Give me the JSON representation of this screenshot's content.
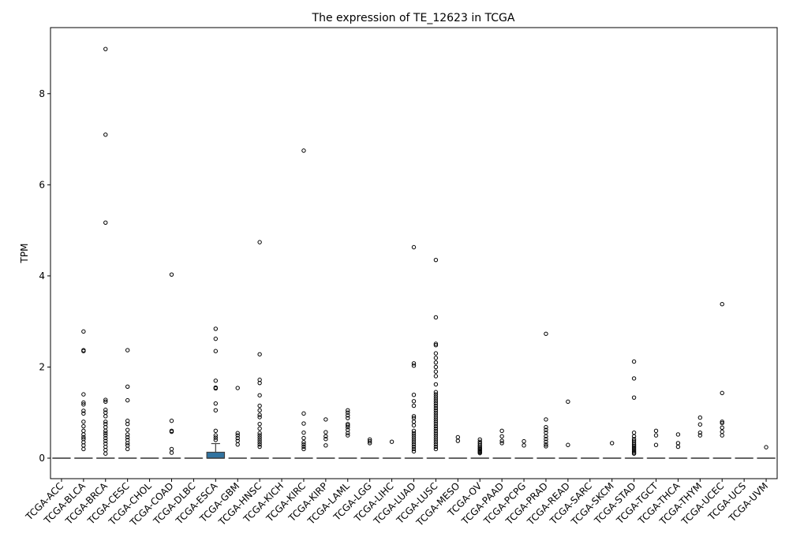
{
  "chart_data": {
    "type": "box",
    "title": "The expression of TE_12623 in TCGA",
    "xlabel": "",
    "ylabel": "TPM",
    "ylim": [
      -0.45,
      9.45
    ],
    "yticks": [
      0,
      2,
      4,
      6,
      8
    ],
    "box_color": "#3274a1",
    "categories": [
      "TCGA-ACC",
      "TCGA-BLCA",
      "TCGA-BRCA",
      "TCGA-CESC",
      "TCGA-CHOL",
      "TCGA-COAD",
      "TCGA-DLBC",
      "TCGA-ESCA",
      "TCGA-GBM",
      "TCGA-HNSC",
      "TCGA-KICH",
      "TCGA-KIRC",
      "TCGA-KIRP",
      "TCGA-LAML",
      "TCGA-LGG",
      "TCGA-LIHC",
      "TCGA-LUAD",
      "TCGA-LUSC",
      "TCGA-MESO",
      "TCGA-OV",
      "TCGA-PAAD",
      "TCGA-PCPG",
      "TCGA-PRAD",
      "TCGA-READ",
      "TCGA-SARC",
      "TCGA-SKCM",
      "TCGA-STAD",
      "TCGA-TGCT",
      "TCGA-THCA",
      "TCGA-THYM",
      "TCGA-UCEC",
      "TCGA-UCS",
      "TCGA-UVM"
    ],
    "boxes": [
      {
        "q1": 0,
        "median": 0,
        "q3": 0,
        "whisker_low": 0,
        "whisker_high": 0,
        "outliers": []
      },
      {
        "q1": 0,
        "median": 0,
        "q3": 0,
        "whisker_low": 0,
        "whisker_high": 0,
        "outliers": [
          2.78,
          2.37,
          2.35,
          1.4,
          1.22,
          1.18,
          1.04,
          0.98,
          0.8,
          0.7,
          0.6,
          0.52,
          0.46,
          0.42,
          0.35,
          0.28,
          0.2
        ]
      },
      {
        "q1": 0,
        "median": 0,
        "q3": 0,
        "whisker_low": 0,
        "whisker_high": 0,
        "outliers": [
          8.98,
          7.1,
          5.17,
          1.28,
          1.24,
          1.06,
          1.0,
          0.92,
          0.8,
          0.75,
          0.68,
          0.6,
          0.55,
          0.5,
          0.44,
          0.38,
          0.32,
          0.25,
          0.18,
          0.1
        ]
      },
      {
        "q1": 0,
        "median": 0,
        "q3": 0,
        "whisker_low": 0,
        "whisker_high": 0,
        "outliers": [
          2.37,
          1.57,
          1.27,
          0.82,
          0.75,
          0.62,
          0.52,
          0.46,
          0.4,
          0.33,
          0.28,
          0.2
        ]
      },
      {
        "q1": 0,
        "median": 0,
        "q3": 0,
        "whisker_low": 0,
        "whisker_high": 0,
        "outliers": []
      },
      {
        "q1": 0,
        "median": 0,
        "q3": 0,
        "whisker_low": 0,
        "whisker_high": 0,
        "outliers": [
          4.03,
          0.82,
          0.6,
          0.58,
          0.2,
          0.12
        ]
      },
      {
        "q1": 0,
        "median": 0,
        "q3": 0,
        "whisker_low": 0,
        "whisker_high": 0,
        "outliers": []
      },
      {
        "q1": 0,
        "median": 0,
        "q3": 0.13,
        "whisker_low": 0,
        "whisker_high": 0.32,
        "outliers": [
          2.84,
          2.62,
          2.35,
          1.7,
          1.55,
          1.53,
          1.2,
          1.05,
          0.6,
          0.5,
          0.45,
          0.4
        ]
      },
      {
        "q1": 0,
        "median": 0,
        "q3": 0,
        "whisker_low": 0,
        "whisker_high": 0,
        "outliers": [
          1.54,
          0.55,
          0.5,
          0.44,
          0.38,
          0.3
        ]
      },
      {
        "q1": 0,
        "median": 0,
        "q3": 0,
        "whisker_low": 0,
        "whisker_high": 0,
        "outliers": [
          4.74,
          2.28,
          1.72,
          1.65,
          1.38,
          1.15,
          1.05,
          0.95,
          0.9,
          0.75,
          0.65,
          0.55,
          0.5,
          0.45,
          0.4,
          0.35,
          0.3,
          0.25
        ]
      },
      {
        "q1": 0,
        "median": 0,
        "q3": 0,
        "whisker_low": 0,
        "whisker_high": 0,
        "outliers": []
      },
      {
        "q1": 0,
        "median": 0,
        "q3": 0,
        "whisker_low": 0,
        "whisker_high": 0,
        "outliers": [
          6.75,
          0.98,
          0.76,
          0.56,
          0.44,
          0.35,
          0.3,
          0.25,
          0.2
        ]
      },
      {
        "q1": 0,
        "median": 0,
        "q3": 0,
        "whisker_low": 0,
        "whisker_high": 0,
        "outliers": [
          0.85,
          0.57,
          0.48,
          0.42,
          0.28
        ]
      },
      {
        "q1": 0,
        "median": 0,
        "q3": 0,
        "whisker_low": 0,
        "whisker_high": 0,
        "outliers": [
          1.05,
          1.0,
          0.94,
          0.88,
          0.75,
          0.72,
          0.68,
          0.62,
          0.55,
          0.5
        ]
      },
      {
        "q1": 0,
        "median": 0,
        "q3": 0,
        "whisker_low": 0,
        "whisker_high": 0,
        "outliers": [
          0.41,
          0.37,
          0.33
        ]
      },
      {
        "q1": 0,
        "median": 0,
        "q3": 0,
        "whisker_low": 0,
        "whisker_high": 0,
        "outliers": [
          0.36
        ]
      },
      {
        "q1": 0,
        "median": 0,
        "q3": 0,
        "whisker_low": 0,
        "whisker_high": 0,
        "outliers": [
          4.63,
          2.08,
          2.03,
          1.39,
          1.25,
          1.15,
          0.92,
          0.88,
          0.8,
          0.72,
          0.6,
          0.55,
          0.5,
          0.45,
          0.4,
          0.35,
          0.3,
          0.25,
          0.2,
          0.15
        ]
      },
      {
        "q1": 0,
        "median": 0,
        "q3": 0,
        "whisker_low": 0,
        "whisker_high": 0,
        "outliers": [
          4.35,
          3.09,
          2.51,
          2.48,
          2.3,
          2.2,
          2.1,
          2.0,
          1.9,
          1.8,
          1.62,
          1.45,
          1.4,
          1.35,
          1.3,
          1.25,
          1.2,
          1.15,
          1.1,
          1.05,
          1.0,
          0.95,
          0.9,
          0.85,
          0.8,
          0.75,
          0.7,
          0.65,
          0.6,
          0.55,
          0.5,
          0.45,
          0.4,
          0.35,
          0.3,
          0.25,
          0.2
        ]
      },
      {
        "q1": 0,
        "median": 0,
        "q3": 0,
        "whisker_low": 0,
        "whisker_high": 0,
        "outliers": [
          0.46,
          0.38
        ]
      },
      {
        "q1": 0,
        "median": 0,
        "q3": 0,
        "whisker_low": 0,
        "whisker_high": 0,
        "outliers": [
          0.41,
          0.36,
          0.32,
          0.28,
          0.25,
          0.22,
          0.2,
          0.17,
          0.15,
          0.13,
          0.11
        ]
      },
      {
        "q1": 0,
        "median": 0,
        "q3": 0,
        "whisker_low": 0,
        "whisker_high": 0,
        "outliers": [
          0.6,
          0.48,
          0.38,
          0.33
        ]
      },
      {
        "q1": 0,
        "median": 0,
        "q3": 0,
        "whisker_low": 0,
        "whisker_high": 0,
        "outliers": [
          0.37,
          0.28
        ]
      },
      {
        "q1": 0,
        "median": 0,
        "q3": 0,
        "whisker_low": 0,
        "whisker_high": 0,
        "outliers": [
          2.73,
          0.85,
          0.68,
          0.62,
          0.56,
          0.48,
          0.42,
          0.36,
          0.3,
          0.26
        ]
      },
      {
        "q1": 0,
        "median": 0,
        "q3": 0,
        "whisker_low": 0,
        "whisker_high": 0,
        "outliers": [
          1.24,
          0.29
        ]
      },
      {
        "q1": 0,
        "median": 0,
        "q3": 0,
        "whisker_low": 0,
        "whisker_high": 0,
        "outliers": []
      },
      {
        "q1": 0,
        "median": 0,
        "q3": 0,
        "whisker_low": 0,
        "whisker_high": 0,
        "outliers": [
          0.33
        ]
      },
      {
        "q1": 0,
        "median": 0,
        "q3": 0,
        "whisker_low": 0,
        "whisker_high": 0,
        "outliers": [
          2.12,
          1.75,
          1.33,
          0.56,
          0.48,
          0.42,
          0.38,
          0.34,
          0.3,
          0.27,
          0.24,
          0.21,
          0.18,
          0.15,
          0.12,
          0.1
        ]
      },
      {
        "q1": 0,
        "median": 0,
        "q3": 0,
        "whisker_low": 0,
        "whisker_high": 0,
        "outliers": [
          0.6,
          0.5,
          0.29
        ]
      },
      {
        "q1": 0,
        "median": 0,
        "q3": 0,
        "whisker_low": 0,
        "whisker_high": 0,
        "outliers": [
          0.52,
          0.33,
          0.25
        ]
      },
      {
        "q1": 0,
        "median": 0,
        "q3": 0,
        "whisker_low": 0,
        "whisker_high": 0,
        "outliers": [
          0.89,
          0.74,
          0.56,
          0.5
        ]
      },
      {
        "q1": 0,
        "median": 0,
        "q3": 0,
        "whisker_low": 0,
        "whisker_high": 0,
        "outliers": [
          3.38,
          1.43,
          0.8,
          0.77,
          0.67,
          0.58,
          0.5
        ]
      },
      {
        "q1": 0,
        "median": 0,
        "q3": 0,
        "whisker_low": 0,
        "whisker_high": 0,
        "outliers": []
      },
      {
        "q1": 0,
        "median": 0,
        "q3": 0,
        "whisker_low": 0,
        "whisker_high": 0,
        "outliers": [
          0.24
        ]
      }
    ]
  }
}
